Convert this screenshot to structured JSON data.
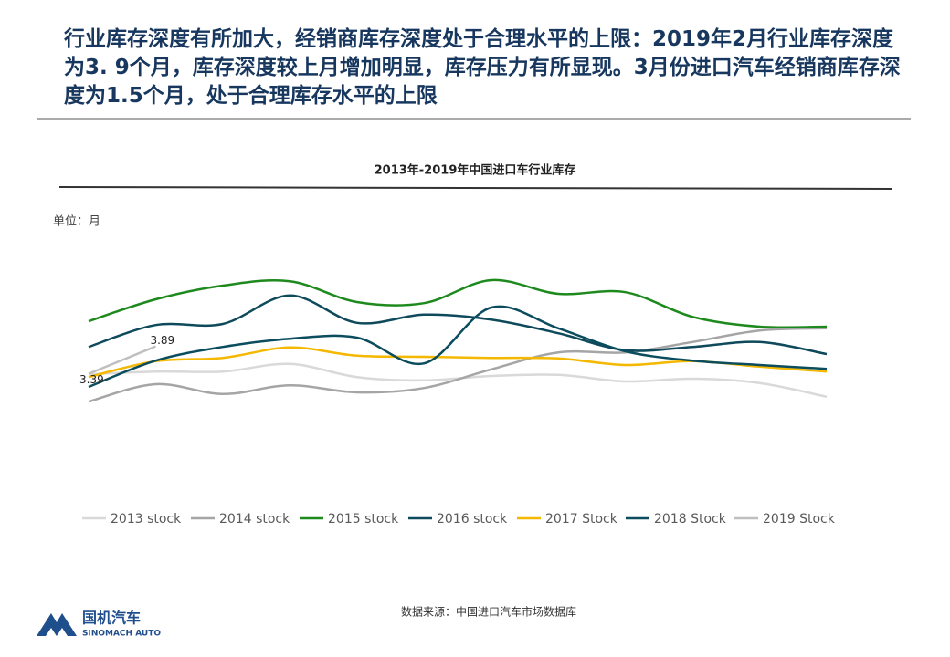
{
  "header": {
    "title": "行业库存深度有所加大，经销商库存深度处于合理水平的上限：2019年2月行业库存深度为3. 9个月，库存深度较上月增加明显，库存压力有所显现。3月份进口汽车经销商库存深度为1.5个月，处于合理库存水平的上限"
  },
  "chart_data": {
    "type": "line",
    "title": "2013年-2019年中国进口车行业库存",
    "unit_label": "单位：月",
    "categories": [
      null,
      null,
      null,
      null,
      null,
      null,
      null,
      null,
      null,
      null,
      null,
      null
    ],
    "ylim": [
      1.5,
      5.5
    ],
    "series": [
      {
        "name": "2013 stock",
        "color": "#d9d9d9",
        "values": [
          3.38,
          3.43,
          3.43,
          3.57,
          3.33,
          3.27,
          3.35,
          3.37,
          3.25,
          3.3,
          3.22,
          2.97
        ]
      },
      {
        "name": "2014 stock",
        "color": "#a5a5a5",
        "values": [
          2.88,
          3.2,
          3.02,
          3.18,
          3.05,
          3.13,
          3.47,
          3.78,
          3.78,
          3.97,
          4.18,
          4.22
        ]
      },
      {
        "name": "2015 stock",
        "color": "#1e8a1e",
        "values": [
          4.35,
          4.75,
          5.0,
          5.08,
          4.7,
          4.68,
          5.1,
          4.85,
          4.88,
          4.43,
          4.25,
          4.25
        ]
      },
      {
        "name": "2016 stock",
        "color": "#0e4a5c",
        "values": [
          3.88,
          4.28,
          4.3,
          4.82,
          4.32,
          4.47,
          4.38,
          4.13,
          3.82,
          3.88,
          3.97,
          3.75
        ]
      },
      {
        "name": "2017 Stock",
        "color": "#f5b800",
        "values": [
          3.33,
          3.62,
          3.68,
          3.87,
          3.72,
          3.7,
          3.68,
          3.67,
          3.55,
          3.62,
          3.52,
          3.43
        ]
      },
      {
        "name": "2018 Stock",
        "color": "#0b4d5e",
        "values": [
          3.15,
          3.63,
          3.88,
          4.03,
          4.05,
          3.58,
          4.6,
          4.22,
          3.8,
          3.63,
          3.55,
          3.48
        ]
      },
      {
        "name": "2019 Stock",
        "color": "#bfbfbf",
        "values": [
          3.39,
          3.89,
          null,
          null,
          null,
          null,
          null,
          null,
          null,
          null,
          null,
          null
        ],
        "data_labels": true
      }
    ]
  },
  "footer": {
    "source": "数据来源：中国进口汽车市场数据库",
    "logo_cn": "国机汽车",
    "logo_en": "SINOMACH AUTO"
  }
}
